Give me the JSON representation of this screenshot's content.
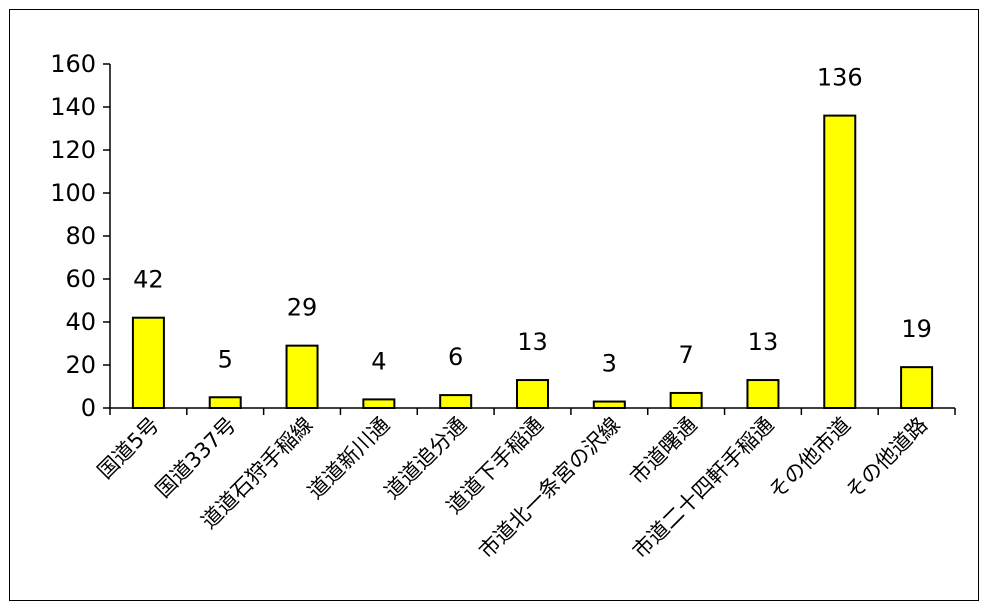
{
  "chart_data": {
    "type": "bar",
    "title": "",
    "xlabel": "",
    "ylabel": "",
    "categories": [
      "国道5号",
      "国道337号",
      "道道石狩手稲線",
      "道道新川通",
      "道道追分通",
      "道道下手稲通",
      "市道北一条宮の沢線",
      "市道曙通",
      "市道二十四軒手稲通",
      "その他市道",
      "その他道路"
    ],
    "values": [
      42,
      5,
      29,
      4,
      6,
      13,
      3,
      7,
      13,
      136,
      19
    ],
    "ylim": [
      0,
      160
    ],
    "yticks": [
      0,
      20,
      40,
      60,
      80,
      100,
      120,
      140,
      160
    ],
    "grid": false,
    "legend": "none",
    "bar_color": "#ffff00",
    "bar_edge_color": "#000000"
  }
}
